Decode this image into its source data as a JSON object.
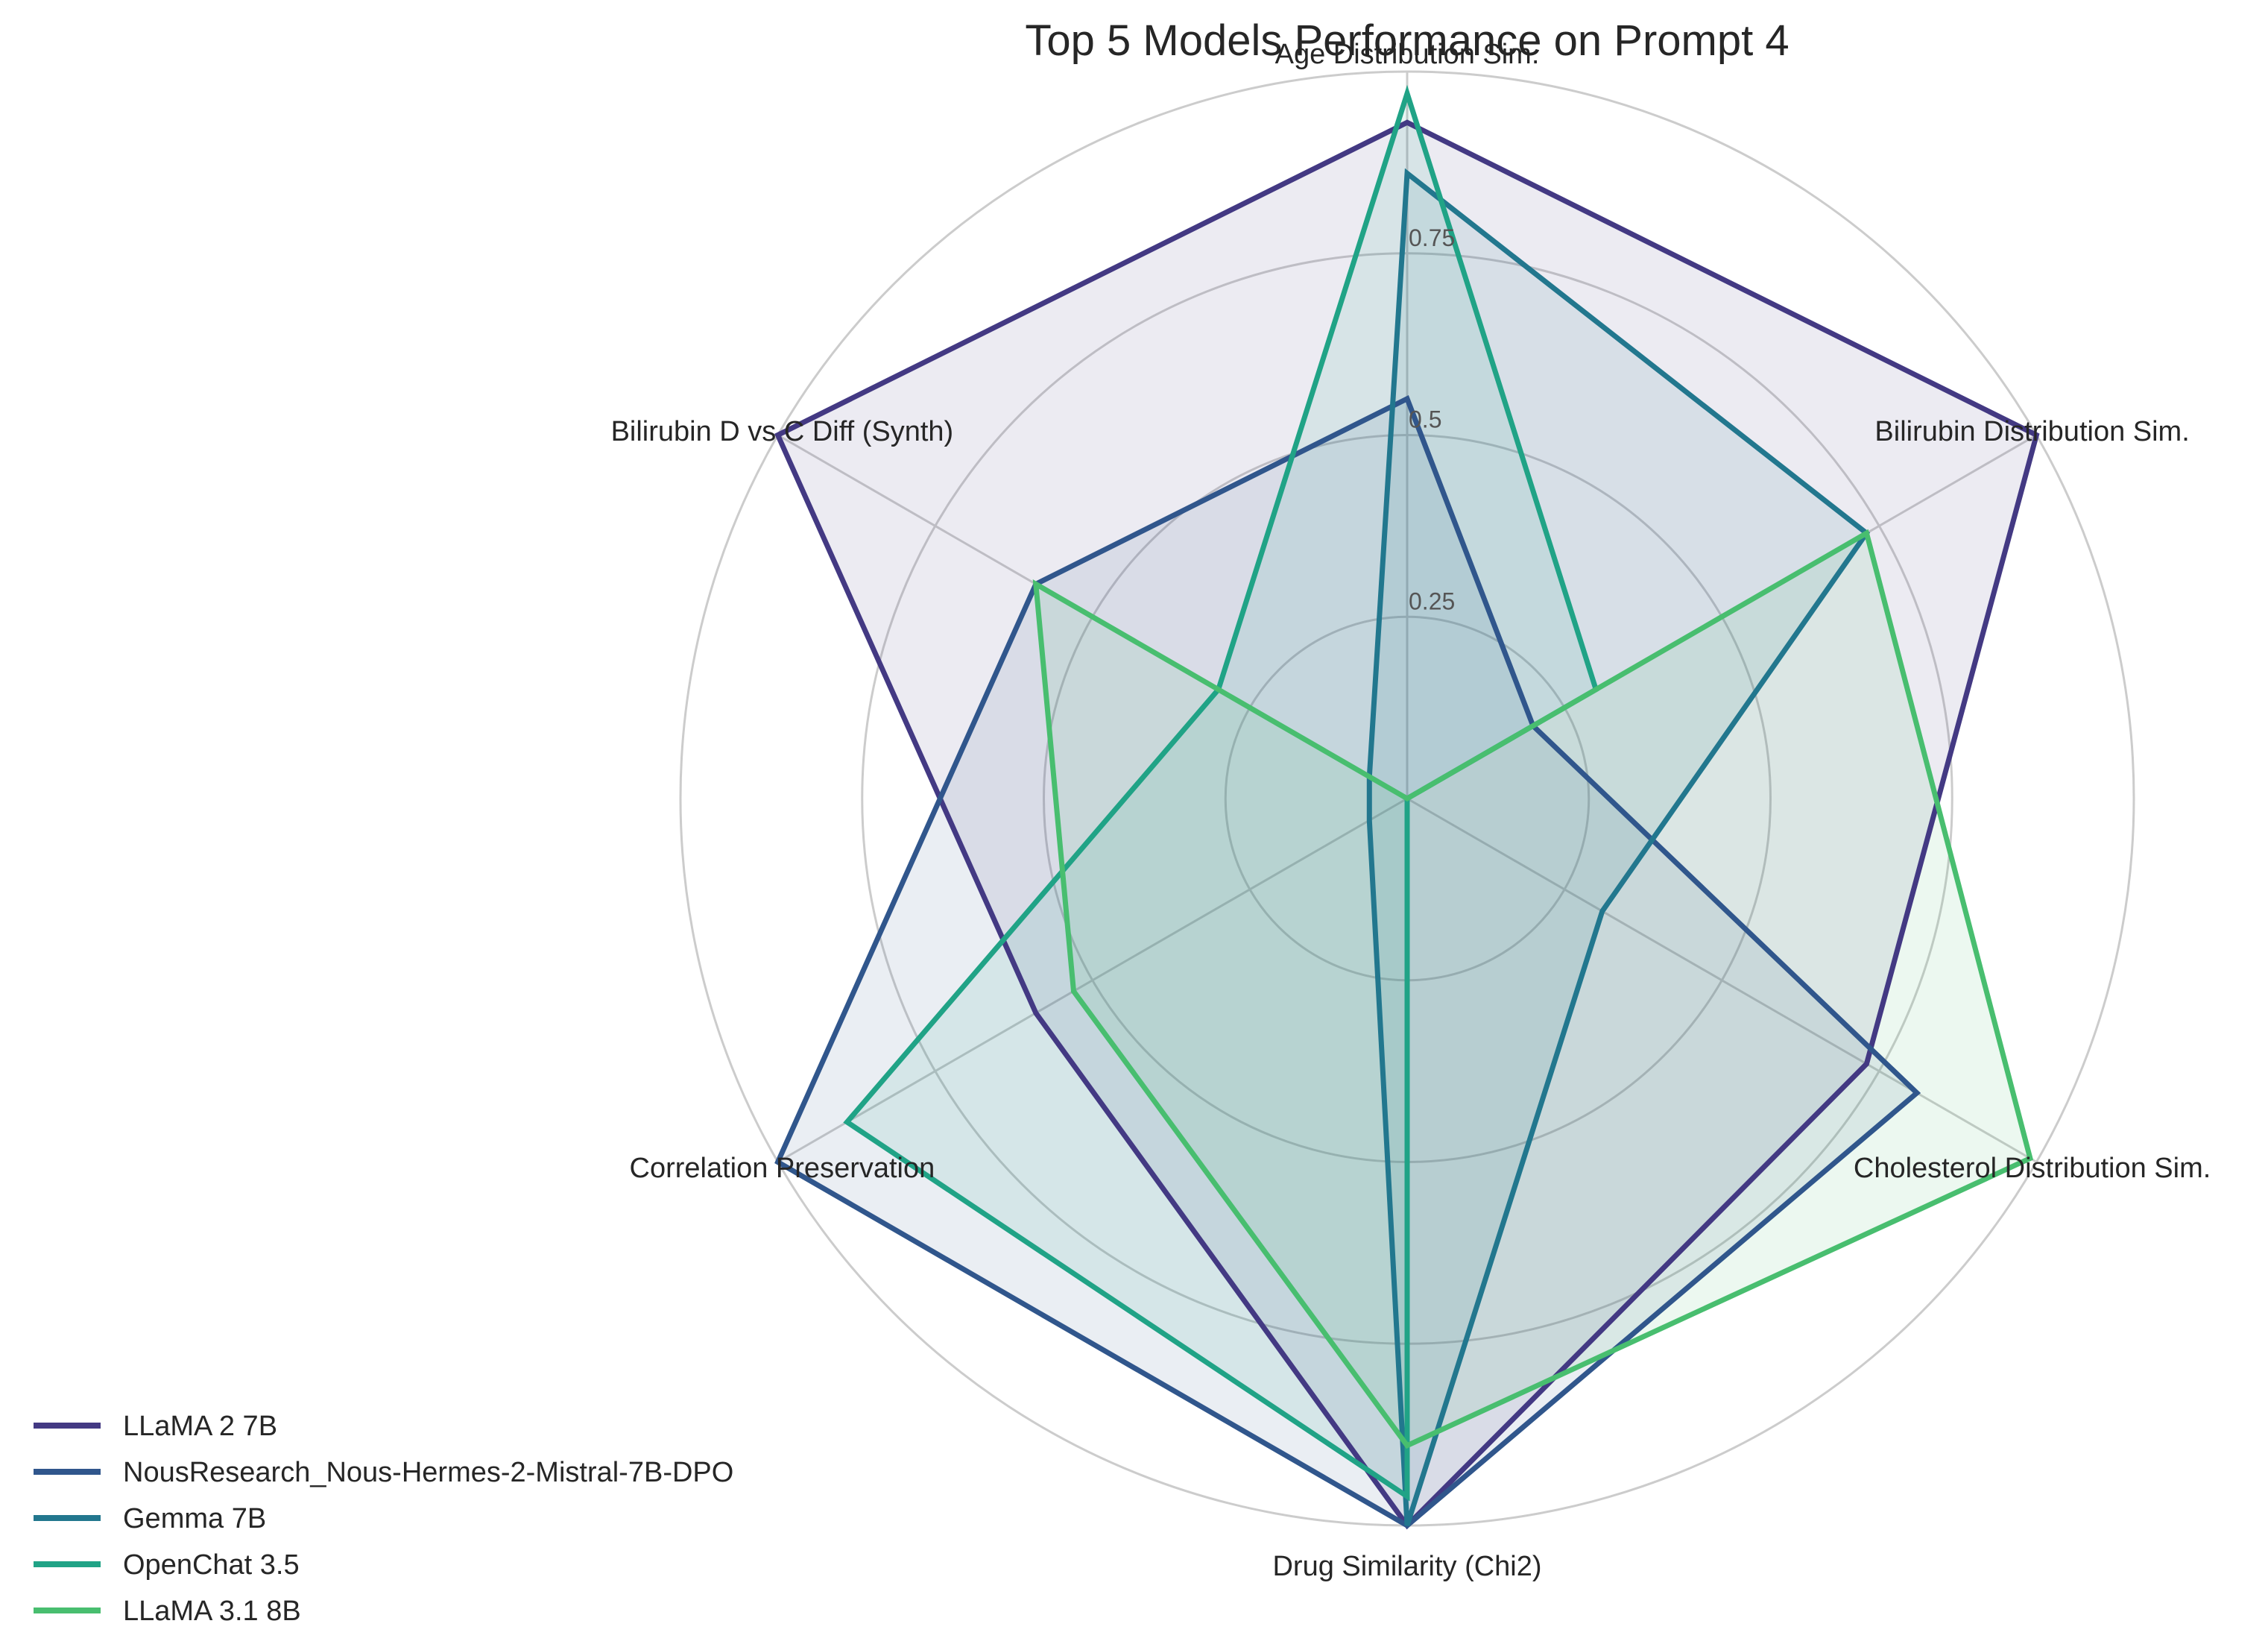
{
  "chart_data": {
    "type": "radar",
    "title": "Top 5 Models Performance on Prompt 4",
    "axes": [
      "Age Distribution Sim.",
      "Bilirubin Distribution Sim.",
      "Cholesterol Distribution Sim.",
      "Drug Similarity (Chi2)",
      "Correlation Preservation",
      "Bilirubin D vs C Diff (Synth)"
    ],
    "rlim": [
      0,
      1
    ],
    "r_ticks": [
      0.25,
      0.5,
      0.75
    ],
    "r_tick_labels": [
      "0.25",
      "0.5",
      "0.75"
    ],
    "grid": true,
    "legend_position": "lower-left",
    "series": [
      {
        "name": "LLaMA 2 7B",
        "color": "#433983",
        "values": [
          0.93,
          1.0,
          0.73,
          1.0,
          0.59,
          1.0
        ]
      },
      {
        "name": "NousResearch_Nous-Hermes-2-Mistral-7B-DPO",
        "color": "#30568c",
        "values": [
          0.55,
          0.2,
          0.81,
          1.0,
          1.0,
          0.59
        ]
      },
      {
        "name": "Gemma 7B",
        "color": "#22778e",
        "values": [
          0.86,
          0.73,
          0.31,
          1.0,
          0.06,
          0.06
        ]
      },
      {
        "name": "OpenChat 3.5",
        "color": "#20a386",
        "values": [
          0.97,
          0.3,
          0.0,
          0.96,
          0.89,
          0.3
        ]
      },
      {
        "name": "LLaMA 3.1 8B",
        "color": "#48be6f",
        "values": [
          0.0,
          0.73,
          0.99,
          0.89,
          0.53,
          0.59
        ]
      }
    ]
  }
}
